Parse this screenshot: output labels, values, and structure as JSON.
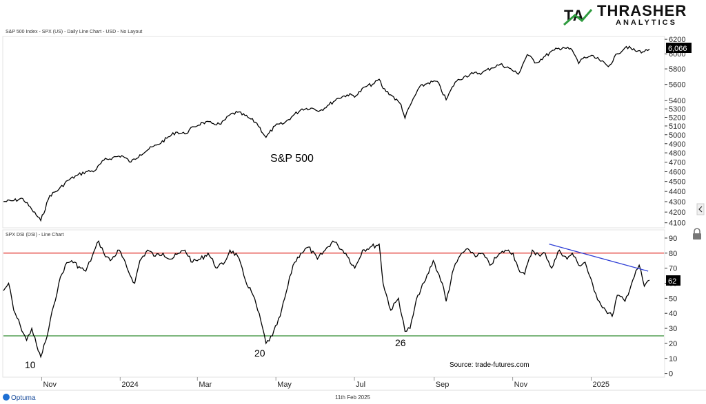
{
  "header": {
    "upper_title": "S&P 500 Index - SPX (US) - Daily Line Chart - USD - No Layout",
    "lower_title": "SPX DSI (DSI) - Line Chart",
    "logo_main": "THRASHER",
    "logo_sub": "ANALYTICS",
    "logo_mark": "TA"
  },
  "footer": {
    "date": "11th Feb 2025",
    "brand": "Optuma",
    "source": "Source: trade-futures.com"
  },
  "colors": {
    "price_line": "#000000",
    "dsi_line": "#000000",
    "upper_band": "#e0302a",
    "lower_band": "#2e8b2e",
    "trendline": "#2f3fd6",
    "label_bg": "#000000",
    "logo_green": "#2e9b3e"
  },
  "chart_data": [
    {
      "type": "line",
      "title": "S&P 500 Index - SPX (US) - Daily Line Chart - USD - No Layout",
      "annotation": "S&P 500",
      "last_value_label": "6,066",
      "x_tick_labels": [
        "Nov",
        "2024",
        "Mar",
        "May",
        "Jul",
        "Sep",
        "Nov",
        "2025"
      ],
      "y_tick_labels": [
        "4100",
        "4200",
        "4300",
        "4400",
        "4500",
        "4600",
        "4700",
        "4800",
        "4900",
        "5000",
        "5100",
        "5200",
        "5300",
        "5400",
        "5600",
        "5800",
        "6000",
        "6200"
      ],
      "ylim": [
        4060,
        6230
      ],
      "scale": "log",
      "series": [
        {
          "x": [
            "2023-09-28",
            "2023-10-06",
            "2023-10-13",
            "2023-10-20",
            "2023-10-27",
            "2023-11-03",
            "2023-11-10",
            "2023-11-17",
            "2023-11-24",
            "2023-12-01",
            "2023-12-08",
            "2023-12-15",
            "2023-12-22",
            "2023-12-29",
            "2024-01-05",
            "2024-01-12",
            "2024-01-19",
            "2024-01-26",
            "2024-02-02",
            "2024-02-09",
            "2024-02-16",
            "2024-02-23",
            "2024-03-01",
            "2024-03-08",
            "2024-03-15",
            "2024-03-22",
            "2024-03-28",
            "2024-04-05",
            "2024-04-12",
            "2024-04-19",
            "2024-04-26",
            "2024-05-03",
            "2024-05-10",
            "2024-05-17",
            "2024-05-24",
            "2024-05-31",
            "2024-06-07",
            "2024-06-14",
            "2024-06-21",
            "2024-06-28",
            "2024-07-05",
            "2024-07-12",
            "2024-07-16",
            "2024-07-19",
            "2024-07-26",
            "2024-08-02",
            "2024-08-05",
            "2024-08-09",
            "2024-08-16",
            "2024-08-23",
            "2024-08-30",
            "2024-09-06",
            "2024-09-13",
            "2024-09-20",
            "2024-09-27",
            "2024-10-04",
            "2024-10-11",
            "2024-10-18",
            "2024-10-25",
            "2024-11-01",
            "2024-11-08",
            "2024-11-15",
            "2024-11-22",
            "2024-11-29",
            "2024-12-06",
            "2024-12-13",
            "2024-12-18",
            "2024-12-20",
            "2024-12-27",
            "2025-01-03",
            "2025-01-10",
            "2025-01-17",
            "2025-01-24",
            "2025-01-31",
            "2025-02-07",
            "2025-02-11"
          ],
          "y": [
            4300,
            4310,
            4330,
            4225,
            4120,
            4360,
            4420,
            4510,
            4560,
            4600,
            4610,
            4720,
            4750,
            4770,
            4700,
            4780,
            4840,
            4890,
            4960,
            5030,
            5010,
            5090,
            5140,
            5130,
            5120,
            5230,
            5260,
            5200,
            5130,
            4970,
            5100,
            5130,
            5220,
            5300,
            5310,
            5280,
            5350,
            5430,
            5470,
            5460,
            5570,
            5610,
            5667,
            5550,
            5460,
            5350,
            5190,
            5340,
            5560,
            5620,
            5640,
            5410,
            5630,
            5700,
            5740,
            5750,
            5810,
            5860,
            5810,
            5730,
            5990,
            5880,
            5970,
            6050,
            6090,
            6050,
            5870,
            5930,
            5970,
            5920,
            5830,
            6000,
            6100,
            6040,
            6030,
            6066
          ]
        }
      ]
    },
    {
      "type": "line",
      "title": "SPX DSI (DSI) - Line Chart",
      "last_value_label": "62",
      "x_tick_labels": [
        "Nov",
        "2024",
        "Mar",
        "May",
        "Jul",
        "Sep",
        "Nov",
        "2025"
      ],
      "y_tick_labels": [
        "0",
        "10",
        "20",
        "30",
        "40",
        "50",
        "60",
        "70",
        "80",
        "90"
      ],
      "ylim": [
        -2,
        95
      ],
      "reference_lines": [
        80,
        25
      ],
      "annotations": [
        "10",
        "20",
        "26"
      ],
      "trendline": {
        "x": [
          "2024-11-25",
          "2025-02-10"
        ],
        "y": [
          86,
          68
        ]
      },
      "series": [
        {
          "x": [
            "2023-09-28",
            "2023-10-02",
            "2023-10-06",
            "2023-10-11",
            "2023-10-16",
            "2023-10-20",
            "2023-10-25",
            "2023-10-27",
            "2023-11-01",
            "2023-11-06",
            "2023-11-10",
            "2023-11-15",
            "2023-11-20",
            "2023-11-27",
            "2023-12-01",
            "2023-12-06",
            "2023-12-11",
            "2023-12-15",
            "2023-12-20",
            "2023-12-27",
            "2024-01-03",
            "2024-01-08",
            "2024-01-12",
            "2024-01-18",
            "2024-01-24",
            "2024-01-30",
            "2024-02-05",
            "2024-02-12",
            "2024-02-16",
            "2024-02-22",
            "2024-02-28",
            "2024-03-05",
            "2024-03-12",
            "2024-03-18",
            "2024-03-22",
            "2024-03-28",
            "2024-04-03",
            "2024-04-09",
            "2024-04-15",
            "2024-04-19",
            "2024-04-24",
            "2024-04-30",
            "2024-05-06",
            "2024-05-10",
            "2024-05-16",
            "2024-05-22",
            "2024-05-29",
            "2024-06-04",
            "2024-06-10",
            "2024-06-14",
            "2024-06-20",
            "2024-06-27",
            "2024-07-03",
            "2024-07-09",
            "2024-07-16",
            "2024-07-19",
            "2024-07-25",
            "2024-07-31",
            "2024-08-05",
            "2024-08-09",
            "2024-08-15",
            "2024-08-21",
            "2024-08-27",
            "2024-09-03",
            "2024-09-06",
            "2024-09-12",
            "2024-09-18",
            "2024-09-24",
            "2024-09-30",
            "2024-10-04",
            "2024-10-10",
            "2024-10-16",
            "2024-10-22",
            "2024-10-28",
            "2024-11-01",
            "2024-11-06",
            "2024-11-12",
            "2024-11-18",
            "2024-11-22",
            "2024-11-27",
            "2024-12-03",
            "2024-12-09",
            "2024-12-13",
            "2024-12-18",
            "2024-12-23",
            "2024-12-30",
            "2025-01-03",
            "2025-01-08",
            "2025-01-13",
            "2025-01-17",
            "2025-01-23",
            "2025-01-29",
            "2025-02-03",
            "2025-02-07",
            "2025-02-11"
          ],
          "y": [
            55,
            60,
            42,
            32,
            22,
            30,
            15,
            11,
            25,
            45,
            60,
            72,
            75,
            70,
            68,
            78,
            88,
            80,
            75,
            82,
            68,
            60,
            75,
            82,
            78,
            80,
            76,
            80,
            82,
            74,
            76,
            80,
            70,
            74,
            82,
            78,
            62,
            52,
            35,
            20,
            25,
            38,
            58,
            72,
            80,
            84,
            76,
            82,
            88,
            85,
            80,
            70,
            82,
            84,
            86,
            60,
            42,
            50,
            28,
            30,
            52,
            62,
            75,
            60,
            48,
            70,
            80,
            82,
            78,
            80,
            72,
            78,
            82,
            80,
            70,
            66,
            82,
            78,
            80,
            70,
            82,
            76,
            80,
            72,
            74,
            55,
            48,
            42,
            38,
            52,
            48,
            62,
            72,
            58,
            62
          ]
        }
      ]
    }
  ]
}
